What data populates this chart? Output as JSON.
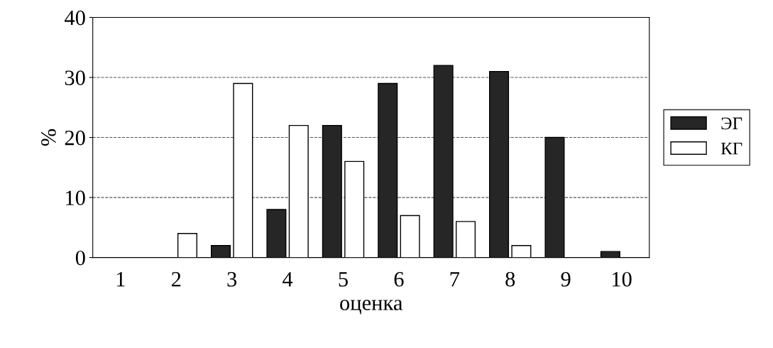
{
  "chart_data": {
    "type": "bar",
    "xlabel": "оценка",
    "ylabel": "%",
    "categories": [
      "1",
      "2",
      "3",
      "4",
      "5",
      "6",
      "7",
      "8",
      "9",
      "10"
    ],
    "series": [
      {
        "name": "ЭГ",
        "color": "#262626",
        "values": [
          0,
          0,
          2,
          8,
          22,
          29,
          32,
          31,
          20,
          1
        ]
      },
      {
        "name": "КГ",
        "color": "#ffffff",
        "values": [
          0,
          4,
          29,
          22,
          16,
          7,
          6,
          2,
          0,
          0
        ]
      }
    ],
    "ylim": [
      0,
      40
    ],
    "yticks": [
      0,
      10,
      20,
      30,
      40
    ],
    "grid": "y",
    "legend": "right"
  }
}
